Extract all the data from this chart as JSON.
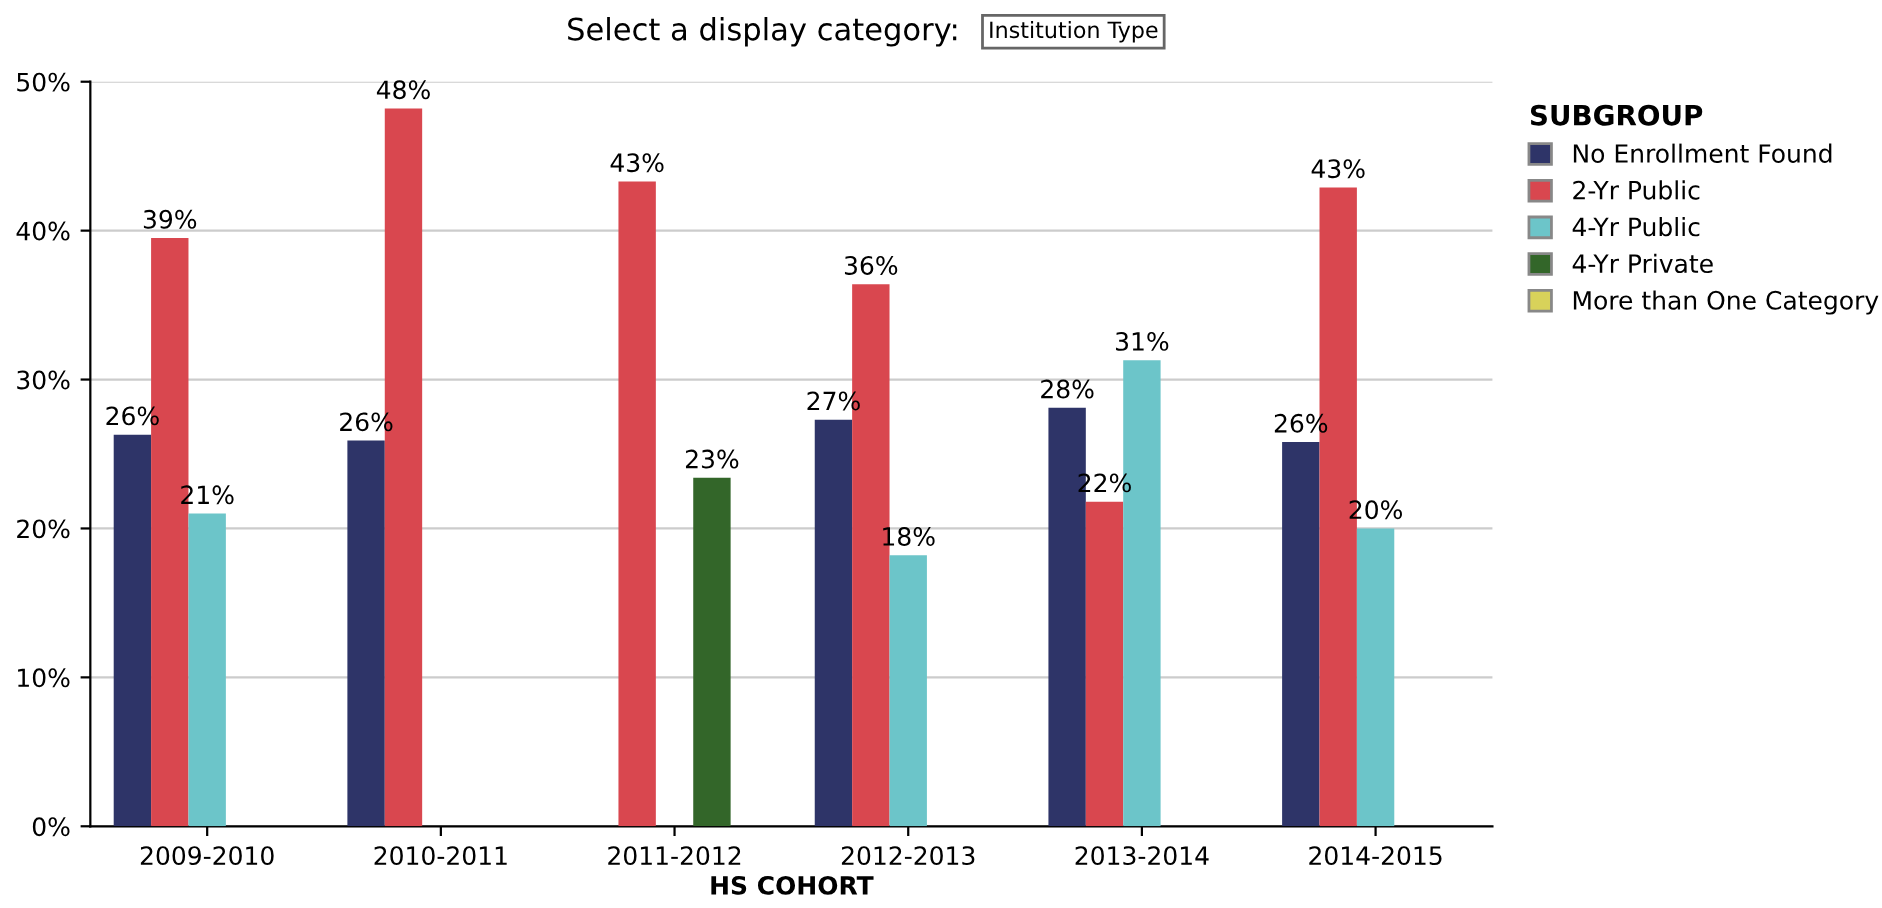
{
  "chart_data": {
    "type": "bar",
    "title": "Select a display category:",
    "subtitle": "Institution Type",
    "xlabel": "HS COHORT",
    "legend_title": "SUBGROUP",
    "legend": "right",
    "grid": "y",
    "categories": [
      "2009-2010",
      "2010-2011",
      "2011-2012",
      "2012-2013",
      "2013-2014",
      "2014-2015"
    ],
    "ylim": [
      0,
      50
    ],
    "yticks": [
      {
        "value": 0,
        "label": "0%"
      },
      {
        "value": 10,
        "label": "10%"
      },
      {
        "value": 20,
        "label": "20%"
      },
      {
        "value": 30,
        "label": "30%"
      },
      {
        "value": 40,
        "label": "40%"
      },
      {
        "value": 50,
        "label": "50%"
      }
    ],
    "series": [
      {
        "name": "No Enrollment Found",
        "color": "#2e3468",
        "values": [
          26.3,
          25.9,
          null,
          27.3,
          28.1,
          25.8
        ],
        "value_labels": [
          "26%",
          "26%",
          null,
          "27%",
          "28%",
          "26%"
        ]
      },
      {
        "name": "2-Yr Public",
        "color": "#d9474f",
        "values": [
          39.5,
          48.2,
          43.3,
          36.4,
          21.8,
          42.9
        ],
        "value_labels": [
          "39%",
          "48%",
          "43%",
          "36%",
          "22%",
          "43%"
        ]
      },
      {
        "name": "4-Yr Public",
        "color": "#6cc5c9",
        "values": [
          21.0,
          null,
          null,
          18.2,
          31.3,
          20.0
        ],
        "value_labels": [
          "21%",
          null,
          null,
          "18%",
          "31%",
          "20%"
        ]
      },
      {
        "name": "4-Yr Private",
        "color": "#336629",
        "values": [
          null,
          null,
          23.4,
          null,
          null,
          null
        ],
        "value_labels": [
          null,
          null,
          "23%",
          null,
          null,
          null
        ]
      },
      {
        "name": "More than One Category",
        "color": "#d8d25a",
        "values": [
          null,
          null,
          null,
          null,
          null,
          null
        ],
        "value_labels": [
          null,
          null,
          null,
          null,
          null,
          null
        ]
      }
    ]
  }
}
